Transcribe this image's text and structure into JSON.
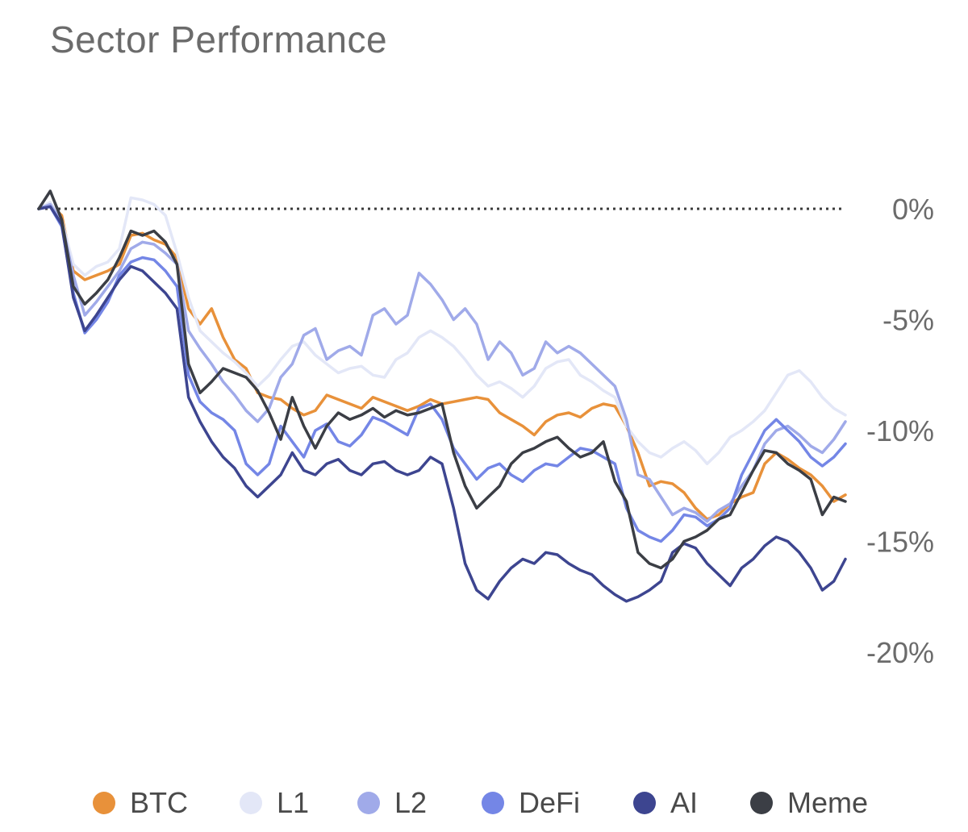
{
  "title": "Sector Performance",
  "colors": {
    "BTC": "#e8913a",
    "L1": "#e3e7f7",
    "L2": "#a0aae9",
    "DeFi": "#7486e6",
    "AI": "#3d4590",
    "Meme": "#3b3e45",
    "zero_line": "#3b3b3b"
  },
  "chart_data": {
    "type": "line",
    "title": "Sector Performance",
    "xlabel": "",
    "ylabel": "",
    "ylim": [
      -20,
      0
    ],
    "yticks": [
      {
        "value": 0,
        "label": "0%"
      },
      {
        "value": -5,
        "label": "-5%"
      },
      {
        "value": -10,
        "label": "-10%"
      },
      {
        "value": -15,
        "label": "-15%"
      },
      {
        "value": -20,
        "label": "-20%"
      }
    ],
    "reference_line": {
      "value": 0,
      "style": "dotted"
    },
    "grid": false,
    "legend_position": "bottom",
    "x": [
      0,
      1,
      2,
      3,
      4,
      5,
      6,
      7,
      8,
      9,
      10,
      11,
      12,
      13,
      14,
      15,
      16,
      17,
      18,
      19,
      20,
      21,
      22,
      23,
      24,
      25,
      26,
      27,
      28,
      29,
      30,
      31,
      32,
      33,
      34,
      35,
      36,
      37,
      38,
      39,
      40,
      41,
      42,
      43,
      44,
      45,
      46,
      47,
      48,
      49,
      50,
      51,
      52,
      53,
      54,
      55,
      56,
      57,
      58,
      59,
      60,
      61,
      62,
      63,
      64,
      65,
      66,
      67,
      68,
      69,
      70
    ],
    "series": [
      {
        "name": "BTC",
        "values": [
          0,
          0.2,
          -0.3,
          -2.8,
          -3.2,
          -3.0,
          -2.8,
          -2.5,
          -1.2,
          -1.1,
          -1.4,
          -1.6,
          -2.2,
          -4.5,
          -5.2,
          -4.5,
          -5.8,
          -6.8,
          -7.2,
          -8.3,
          -8.5,
          -8.6,
          -9.0,
          -9.3,
          -9.1,
          -8.4,
          -8.6,
          -8.8,
          -9.0,
          -8.5,
          -8.7,
          -8.9,
          -9.1,
          -8.9,
          -8.6,
          -8.8,
          -8.7,
          -8.6,
          -8.5,
          -8.6,
          -9.2,
          -9.5,
          -9.8,
          -10.2,
          -9.6,
          -9.3,
          -9.2,
          -9.4,
          -9.0,
          -8.8,
          -8.9,
          -9.8,
          -11.0,
          -12.5,
          -12.3,
          -12.4,
          -12.8,
          -13.5,
          -14.0,
          -13.8,
          -13.3,
          -13.0,
          -12.8,
          -11.5,
          -11.0,
          -11.3,
          -11.7,
          -12.0,
          -12.5,
          -13.2,
          -12.9
        ]
      },
      {
        "name": "L1",
        "values": [
          0,
          0.3,
          -0.5,
          -2.5,
          -3.0,
          -2.6,
          -2.4,
          -1.8,
          0.5,
          0.4,
          0.2,
          -0.3,
          -2.0,
          -4.0,
          -5.5,
          -6.0,
          -6.5,
          -6.9,
          -7.4,
          -8.0,
          -7.5,
          -6.8,
          -6.2,
          -6.0,
          -6.6,
          -7.0,
          -7.4,
          -7.2,
          -7.1,
          -7.5,
          -7.6,
          -6.8,
          -6.5,
          -5.8,
          -5.5,
          -5.8,
          -6.2,
          -6.8,
          -7.5,
          -8.0,
          -7.8,
          -8.1,
          -8.5,
          -8.0,
          -7.2,
          -6.9,
          -6.8,
          -7.5,
          -7.8,
          -8.2,
          -8.5,
          -9.8,
          -10.5,
          -11.0,
          -11.2,
          -10.8,
          -10.5,
          -10.9,
          -11.5,
          -11.0,
          -10.3,
          -10.0,
          -9.6,
          -9.1,
          -8.3,
          -7.5,
          -7.3,
          -7.8,
          -8.5,
          -9.0,
          -9.3
        ]
      },
      {
        "name": "L2",
        "values": [
          0,
          0.2,
          -0.6,
          -3.0,
          -4.8,
          -4.2,
          -3.5,
          -2.8,
          -1.8,
          -1.5,
          -1.6,
          -2.0,
          -2.5,
          -5.5,
          -6.3,
          -7.0,
          -7.8,
          -8.4,
          -9.1,
          -9.6,
          -9.0,
          -7.6,
          -7.0,
          -5.7,
          -5.4,
          -6.8,
          -6.4,
          -6.2,
          -6.6,
          -4.8,
          -4.5,
          -5.2,
          -4.8,
          -2.9,
          -3.4,
          -4.1,
          -5.0,
          -4.5,
          -5.2,
          -6.8,
          -6.0,
          -6.5,
          -7.5,
          -7.2,
          -6.0,
          -6.5,
          -6.2,
          -6.5,
          -7.0,
          -7.5,
          -8.0,
          -9.5,
          -12.0,
          -12.2,
          -13.0,
          -13.8,
          -13.5,
          -13.7,
          -14.1,
          -13.6,
          -13.3,
          -12.5,
          -11.8,
          -10.6,
          -10.0,
          -9.8,
          -10.2,
          -10.7,
          -11.0,
          -10.4,
          -9.6
        ]
      },
      {
        "name": "DeFi",
        "values": [
          0,
          0.1,
          -0.8,
          -3.8,
          -5.6,
          -5.0,
          -4.2,
          -3.0,
          -2.4,
          -2.2,
          -2.3,
          -2.8,
          -3.5,
          -7.5,
          -8.7,
          -9.2,
          -9.5,
          -10.0,
          -11.5,
          -12.0,
          -11.5,
          -9.8,
          -10.5,
          -11.2,
          -10.0,
          -9.7,
          -10.5,
          -10.7,
          -10.2,
          -9.4,
          -9.6,
          -9.9,
          -10.2,
          -9.0,
          -8.8,
          -9.5,
          -10.8,
          -11.5,
          -12.2,
          -11.7,
          -11.5,
          -12.0,
          -12.3,
          -11.8,
          -11.5,
          -11.6,
          -11.2,
          -10.8,
          -10.9,
          -11.2,
          -11.5,
          -13.5,
          -14.5,
          -14.8,
          -15.0,
          -14.5,
          -13.8,
          -13.9,
          -14.3,
          -14.0,
          -13.5,
          -12.0,
          -11.0,
          -10.0,
          -9.5,
          -10.0,
          -10.5,
          -11.2,
          -11.6,
          -11.2,
          -10.6
        ]
      },
      {
        "name": "AI",
        "values": [
          0,
          0.1,
          -0.7,
          -4.0,
          -5.5,
          -4.8,
          -4.0,
          -3.2,
          -2.6,
          -2.8,
          -3.3,
          -3.8,
          -4.5,
          -8.5,
          -9.6,
          -10.5,
          -11.2,
          -11.7,
          -12.5,
          -13.0,
          -12.5,
          -12.0,
          -11.0,
          -11.8,
          -12.0,
          -11.5,
          -11.3,
          -11.8,
          -12.0,
          -11.5,
          -11.4,
          -11.8,
          -12.0,
          -11.8,
          -11.2,
          -11.5,
          -13.5,
          -16.0,
          -17.2,
          -17.6,
          -16.8,
          -16.2,
          -15.8,
          -16.0,
          -15.5,
          -15.6,
          -16.0,
          -16.3,
          -16.5,
          -17.0,
          -17.4,
          -17.7,
          -17.5,
          -17.2,
          -16.8,
          -15.5,
          -15.1,
          -15.3,
          -16.0,
          -16.5,
          -17.0,
          -16.2,
          -15.8,
          -15.2,
          -14.8,
          -15.0,
          -15.5,
          -16.2,
          -17.2,
          -16.8,
          -15.8
        ]
      },
      {
        "name": "Meme",
        "values": [
          0,
          0.8,
          -0.5,
          -3.5,
          -4.3,
          -3.8,
          -3.2,
          -2.2,
          -1.0,
          -1.2,
          -1.0,
          -1.5,
          -2.5,
          -7.0,
          -8.3,
          -7.8,
          -7.2,
          -7.4,
          -7.6,
          -8.2,
          -9.2,
          -10.4,
          -8.5,
          -9.8,
          -10.8,
          -9.8,
          -9.2,
          -9.5,
          -9.3,
          -9.0,
          -9.4,
          -9.1,
          -9.3,
          -9.2,
          -9.0,
          -8.8,
          -11.0,
          -12.5,
          -13.5,
          -13.0,
          -12.5,
          -11.5,
          -11.0,
          -10.8,
          -10.5,
          -10.3,
          -10.8,
          -11.2,
          -11.0,
          -10.5,
          -12.3,
          -13.2,
          -15.5,
          -16.0,
          -16.2,
          -15.8,
          -15.0,
          -14.8,
          -14.5,
          -14.0,
          -13.8,
          -12.8,
          -11.8,
          -10.9,
          -11.0,
          -11.5,
          -11.8,
          -12.2,
          -13.8,
          -13.0,
          -13.2
        ]
      }
    ]
  },
  "legend": [
    {
      "label": "BTC",
      "color": "#e8913a"
    },
    {
      "label": "L1",
      "color": "#e3e7f7"
    },
    {
      "label": "L2",
      "color": "#a0aae9"
    },
    {
      "label": "DeFi",
      "color": "#7486e6"
    },
    {
      "label": "AI",
      "color": "#3d4590"
    },
    {
      "label": "Meme",
      "color": "#3b3e45"
    }
  ]
}
